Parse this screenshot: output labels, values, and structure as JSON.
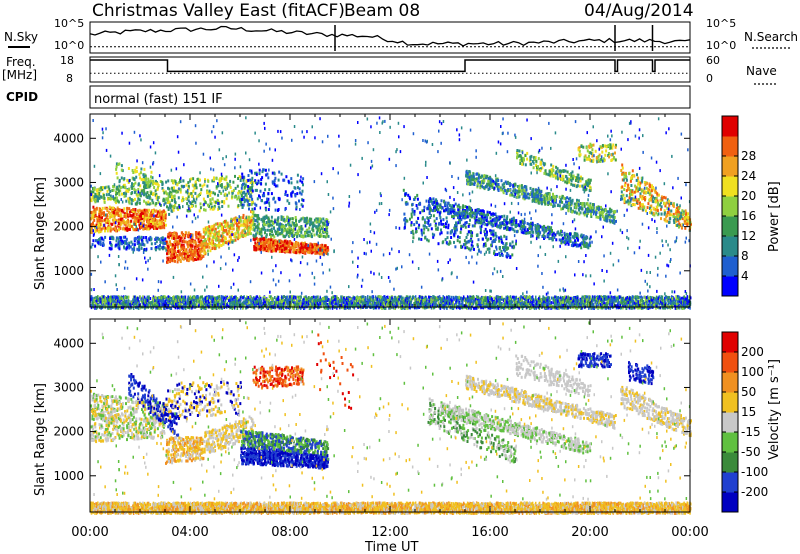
{
  "header": {
    "site": "Christmas Valley East (fitACF)",
    "beam": "Beam 08",
    "date": "04/Aug/2014"
  },
  "chart_data": [
    {
      "type": "line",
      "panel": "noise",
      "left_label": "N.Sky",
      "right_label": "N.Search",
      "left_ticks": [
        "10^5",
        "10^0"
      ],
      "right_ticks": [
        "10^5",
        "10^0"
      ],
      "x": [
        "00:00",
        "02:00",
        "03:00",
        "04:00",
        "06:00",
        "08:00",
        "09:40",
        "10:00",
        "12:00",
        "16:00",
        "20:00",
        "21:00",
        "22:00",
        "24:00"
      ],
      "series": [
        {
          "values": [
            0.6,
            0.7,
            0.75,
            0.8,
            0.7,
            0.6,
            0.55,
            0.3,
            0.3,
            0.3,
            0.35,
            0.4,
            0.4,
            0.35
          ]
        },
        {
          "values": [
            0.2,
            0.2,
            0.2,
            0.2,
            0.2,
            0.2,
            0.2,
            0.2,
            0.2,
            0.2,
            0.2,
            0.2,
            0.2,
            0.2
          ]
        }
      ]
    },
    {
      "type": "line",
      "panel": "freq",
      "left_label_lines": [
        "Freq.",
        "[MHz]"
      ],
      "right_label": "Nave",
      "left_ticks": [
        "18",
        "8"
      ],
      "right_ticks": [
        "60",
        "0"
      ],
      "series": [
        {
          "name": "freq",
          "steps": [
            [
              0,
              1
            ],
            [
              3.1,
              0.4
            ],
            [
              15.0,
              1
            ],
            [
              21.0,
              0.4
            ],
            [
              21.1,
              1
            ],
            [
              22.5,
              0.4
            ],
            [
              22.6,
              1
            ],
            [
              24,
              1
            ]
          ]
        },
        {
          "name": "nave",
          "values": [
            0.35,
            0.35,
            0.35,
            0.35,
            0.35,
            0.35
          ]
        }
      ]
    },
    {
      "type": "table",
      "panel": "cpid",
      "label": "CPID",
      "value": "normal (fast) 151 IF"
    },
    {
      "type": "heatmap",
      "panel": "power",
      "ylabel": "Slant Range [km]",
      "yticks": [
        "1000",
        "2000",
        "3000",
        "4000"
      ],
      "ylim": [
        180,
        4550
      ],
      "colorbar_label": "Power [dB]",
      "colorbar_ticks": [
        "4",
        "8",
        "12",
        "16",
        "20",
        "24",
        "28"
      ],
      "colors": [
        "#0000ff",
        "#1f5fd0",
        "#2a8a8a",
        "#3a9a50",
        "#8fd040",
        "#f0e020",
        "#f0a020",
        "#f06010",
        "#e00000"
      ],
      "x_range_hours": [
        0,
        24
      ]
    },
    {
      "type": "heatmap",
      "panel": "velocity",
      "ylabel": "Slant Range [km]",
      "yticks": [
        "1000",
        "2000",
        "3000",
        "4000"
      ],
      "ylim": [
        180,
        4550
      ],
      "colorbar_label": "Velocity [m s⁻¹]",
      "colorbar_ticks": [
        "200",
        "100",
        "50",
        "15",
        "-15",
        "-50",
        "-100",
        "-200"
      ],
      "colors": [
        "#0000c0",
        "#2040d0",
        "#3a8a3a",
        "#60c040",
        "#c8c8c8",
        "#f0c020",
        "#f09020",
        "#f05010",
        "#e00000"
      ],
      "xticks": [
        "00:00",
        "04:00",
        "08:00",
        "12:00",
        "16:00",
        "20:00",
        "00:00"
      ],
      "xlabel": "Time UT",
      "x_range_hours": [
        0,
        24
      ]
    }
  ]
}
